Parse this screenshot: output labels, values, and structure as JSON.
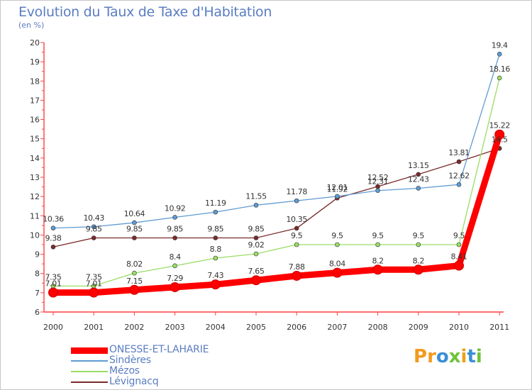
{
  "title": "Evolution du Taux de Taxe d'Habitation",
  "subtitle": "(en %)",
  "logo": {
    "letters": [
      "P",
      "r",
      "o",
      "x",
      "i",
      "t",
      "i"
    ],
    "colors": [
      "#f39a1e",
      "#f39a1e",
      "#3b8fd8",
      "#6fc23a",
      "#e8a21c",
      "#3b8fd8",
      "#6fc23a"
    ]
  },
  "chart_data": {
    "type": "line",
    "x": [
      "2000",
      "2001",
      "2002",
      "2003",
      "2004",
      "2005",
      "2006",
      "2007",
      "2008",
      "2009",
      "2010",
      "2011"
    ],
    "ylim": [
      6,
      20
    ],
    "yticks": [
      "6",
      "7",
      "8",
      "9",
      "10",
      "11",
      "12",
      "13",
      "14",
      "15",
      "16",
      "17",
      "18",
      "19",
      "20"
    ],
    "grid": false,
    "series": [
      {
        "name": "ONESSE-ET-LAHARIE",
        "color": "#ff0000",
        "values": [
          7.01,
          7.01,
          7.15,
          7.29,
          7.43,
          7.65,
          7.88,
          8.04,
          8.2,
          8.2,
          8.41,
          15.22
        ],
        "labels": [
          "7.01",
          "7.01",
          "7.15",
          "7.29",
          "7.43",
          "7.65",
          "7.88",
          "8.04",
          "8.2",
          "8.2",
          "8.41",
          "15.22"
        ]
      },
      {
        "name": "Sindères",
        "color": "#5f9bd2",
        "values": [
          10.36,
          10.43,
          10.64,
          10.92,
          11.19,
          11.55,
          11.78,
          12.01,
          12.31,
          12.43,
          12.62,
          19.4
        ],
        "labels": [
          "10.36",
          "10.43",
          "10.64",
          "10.92",
          "11.19",
          "11.55",
          "11.78",
          "12.01",
          "12.31",
          "12.43",
          "12.62",
          "19.4"
        ]
      },
      {
        "name": "Mézos",
        "color": "#99dd66",
        "values": [
          7.35,
          7.35,
          8.02,
          8.4,
          8.8,
          9.02,
          9.5,
          9.5,
          9.5,
          9.5,
          9.5,
          18.16
        ],
        "labels": [
          "7.35",
          "7.35",
          "8.02",
          "8.4",
          "8.8",
          "9.02",
          "9.5",
          "9.5",
          "9.5",
          "9.5",
          "9.5",
          "18.16"
        ]
      },
      {
        "name": "Lévignacq",
        "color": "#7a2a2a",
        "values": [
          9.38,
          9.85,
          9.85,
          9.85,
          9.85,
          9.85,
          10.35,
          11.92,
          12.52,
          13.15,
          13.81,
          14.5
        ],
        "labels": [
          "9.38",
          "9.85",
          "9.85",
          "9.85",
          "9.85",
          "9.85",
          "10.35",
          "11.92",
          "12.52",
          "13.15",
          "13.81",
          "14.5"
        ]
      }
    ],
    "legend_position": "bottom-left"
  }
}
